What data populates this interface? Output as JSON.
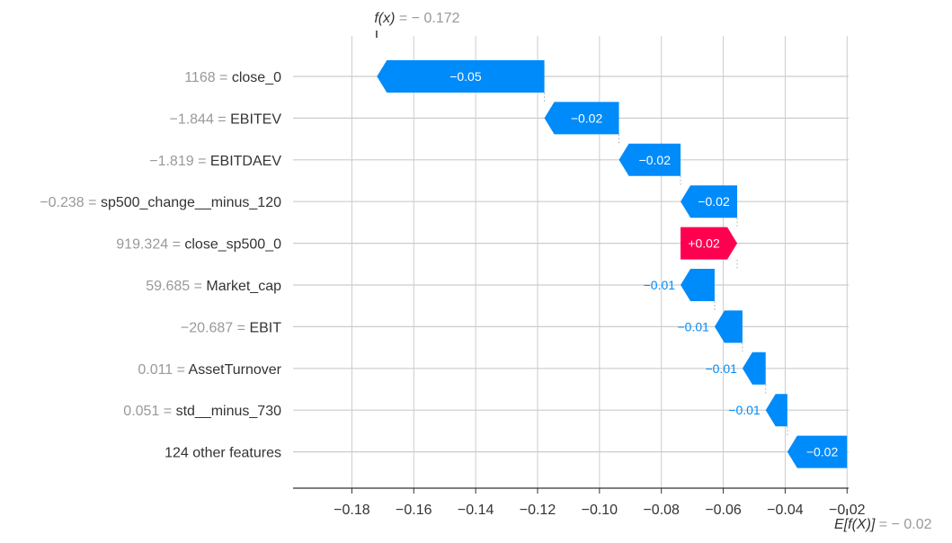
{
  "chart_data": {
    "type": "waterfall",
    "title": "",
    "xlabel": "",
    "ylabel": "",
    "xlim": [
      -0.199,
      -0.0195
    ],
    "x_ticks": [
      -0.18,
      -0.16,
      -0.14,
      -0.12,
      -0.1,
      -0.08,
      -0.06,
      -0.04,
      -0.02
    ],
    "x_tick_labels": [
      "−0.18",
      "−0.16",
      "−0.14",
      "−0.12",
      "−0.10",
      "−0.08",
      "−0.06",
      "−0.04",
      "−0.02"
    ],
    "grid": true,
    "fx": {
      "prefix": "f(x)",
      "text": " = − 0.172",
      "value": -0.172
    },
    "efx": {
      "prefix": "E[f(X)]",
      "text": " = − 0.02",
      "value": -0.02
    },
    "features": [
      {
        "value_text": "1168 = ",
        "name": "close_0",
        "shap": -0.05,
        "label": "−0.05",
        "start": -0.1178,
        "end": -0.1719
      },
      {
        "value_text": "−1.844 = ",
        "name": "EBITEV",
        "shap": -0.02,
        "label": "−0.02",
        "start": -0.0937,
        "end": -0.1178
      },
      {
        "value_text": "−1.819 = ",
        "name": "EBITDAEV",
        "shap": -0.02,
        "label": "−0.02",
        "start": -0.0738,
        "end": -0.0937
      },
      {
        "value_text": "−0.238 = ",
        "name": "sp500_change__minus_120",
        "shap": -0.02,
        "label": "−0.02",
        "start": -0.0555,
        "end": -0.0738
      },
      {
        "value_text": "919.324 = ",
        "name": "close_sp500_0",
        "shap": 0.02,
        "label": "+0.02",
        "start": -0.0738,
        "end": -0.0555
      },
      {
        "value_text": "59.685 = ",
        "name": "Market_cap",
        "shap": -0.01,
        "label": "−0.01",
        "start": -0.0628,
        "end": -0.0738
      },
      {
        "value_text": "−20.687 = ",
        "name": "EBIT",
        "shap": -0.01,
        "label": "−0.01",
        "start": -0.0538,
        "end": -0.0628
      },
      {
        "value_text": "0.011 = ",
        "name": "AssetTurnover",
        "shap": -0.01,
        "label": "−0.01",
        "start": -0.0463,
        "end": -0.0538
      },
      {
        "value_text": "0.051 = ",
        "name": "std__minus_730",
        "shap": -0.01,
        "label": "−0.01",
        "start": -0.0393,
        "end": -0.0463
      },
      {
        "value_text": "",
        "name": "124 other features",
        "shap": -0.02,
        "label": "−0.02",
        "start": -0.02,
        "end": -0.0393
      }
    ],
    "colors": {
      "negative": "#008bfb",
      "positive": "#ff0051",
      "grid": "#cccccc",
      "value_text": "#999999",
      "feature_text": "#333333",
      "axis": "#333333"
    }
  }
}
